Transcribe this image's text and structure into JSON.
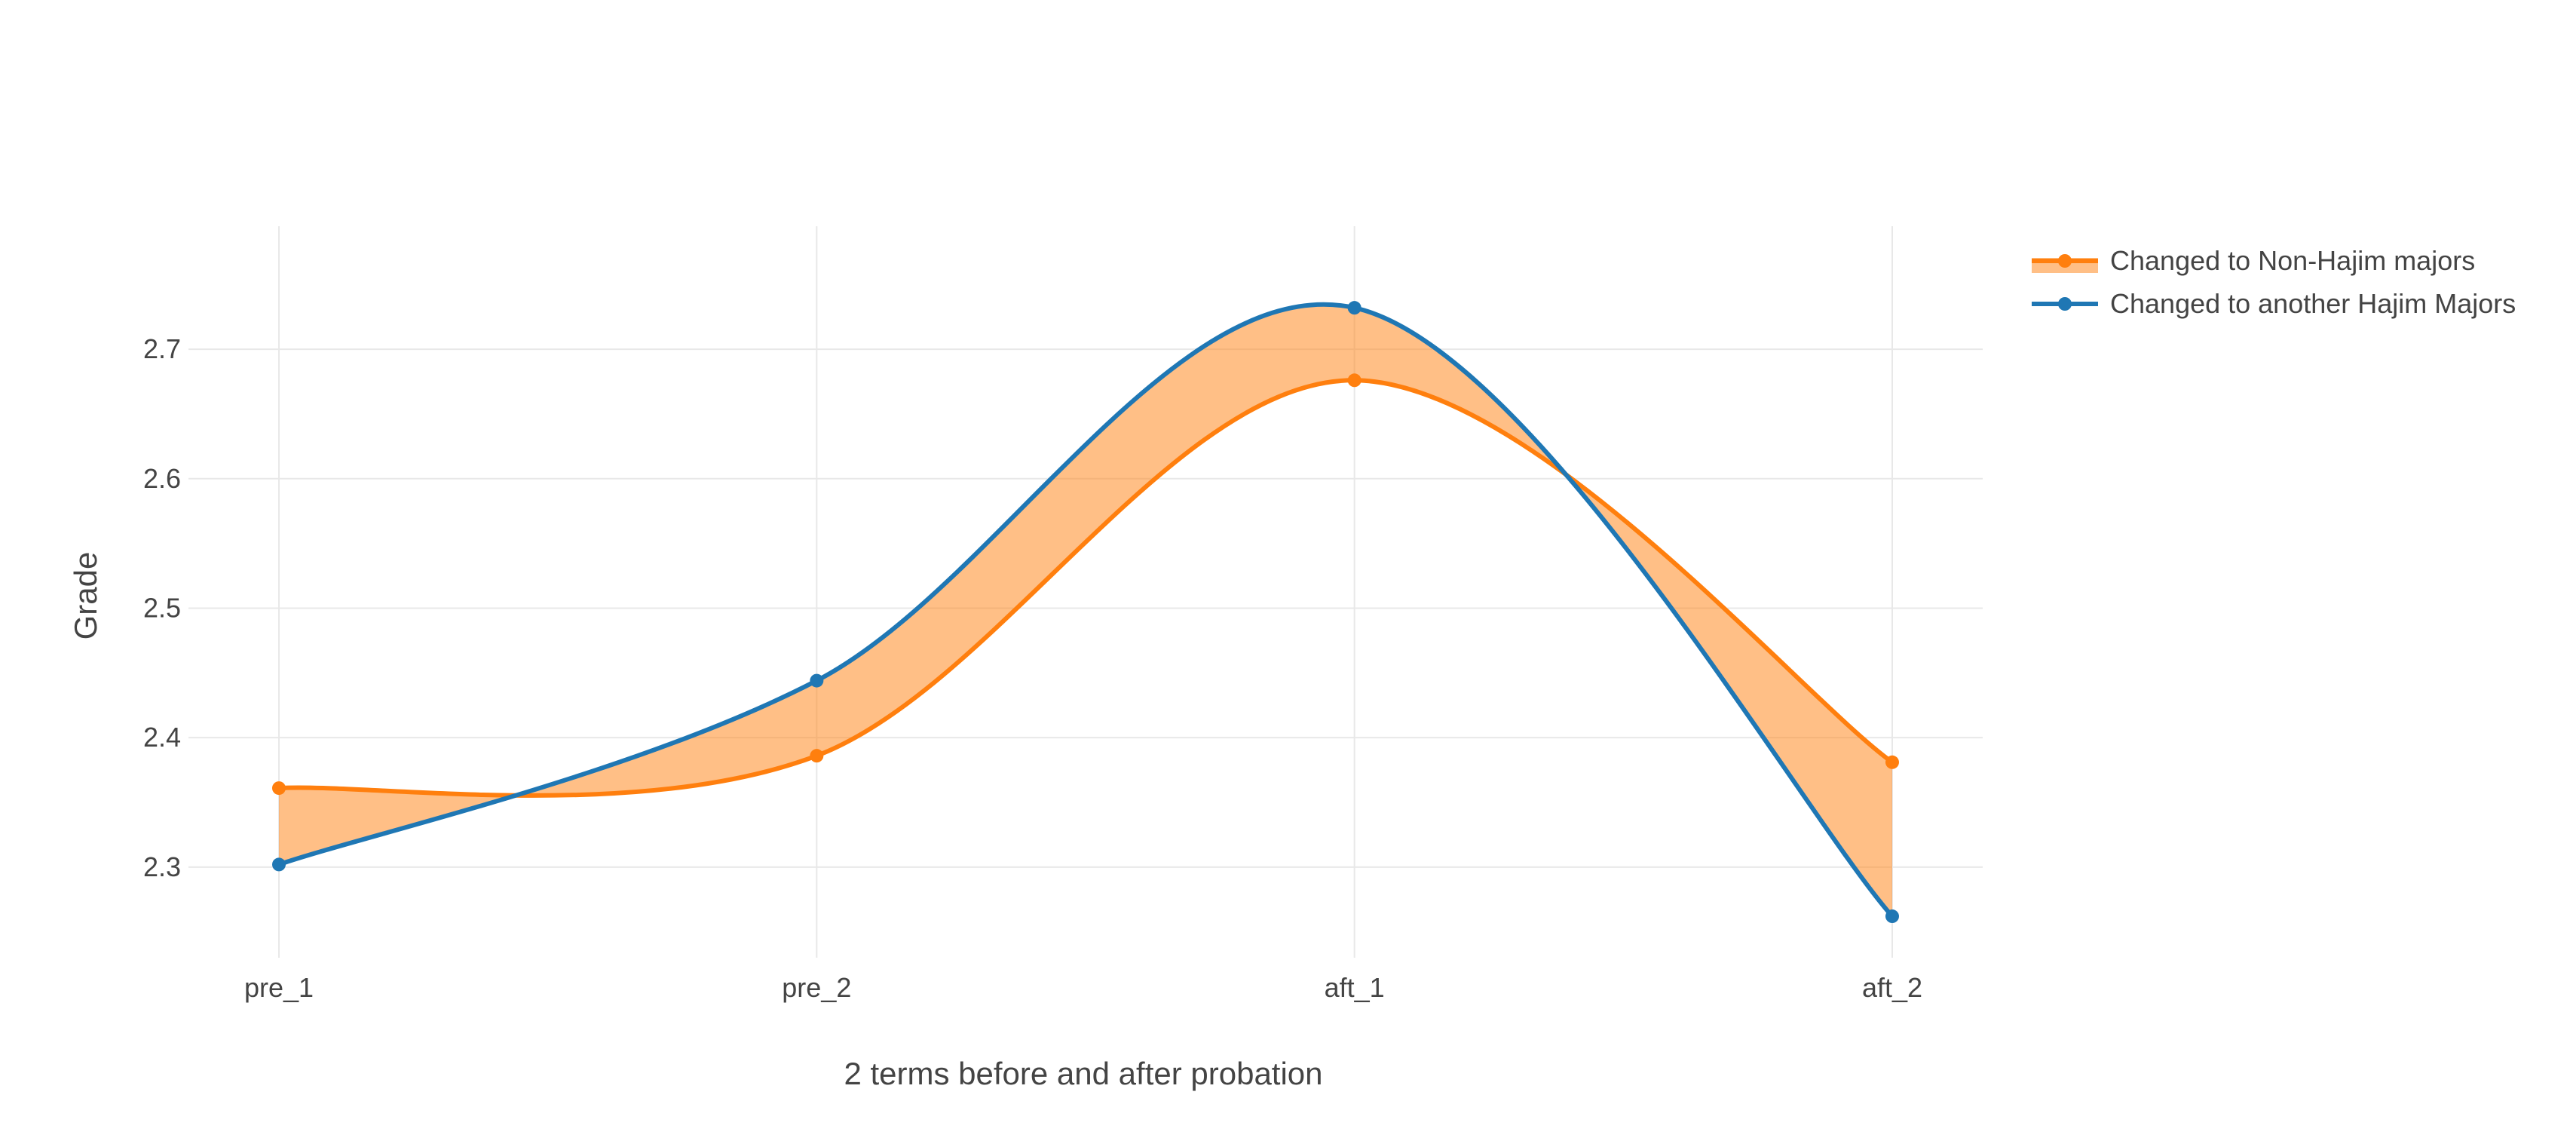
{
  "chart_data": {
    "type": "line",
    "title": "",
    "xlabel": "2 terms before and after probation",
    "ylabel": "Grade",
    "categories": [
      "pre_1",
      "pre_2",
      "aft_1",
      "aft_2"
    ],
    "yticks": [
      2.3,
      2.4,
      2.5,
      2.6,
      2.7
    ],
    "ylim": [
      2.23,
      2.795
    ],
    "grid": true,
    "legend_position": "top-right",
    "fill_between": true,
    "series": [
      {
        "name": "Changed to Non-Hajim majors",
        "values": [
          2.361,
          2.386,
          2.676,
          2.381
        ],
        "color": "#ff7f0e",
        "fill": "rgba(255,127,14,0.5)"
      },
      {
        "name": "Changed to another Hajim Majors",
        "values": [
          2.302,
          2.444,
          2.732,
          2.262
        ],
        "color": "#1f77b4"
      }
    ]
  }
}
